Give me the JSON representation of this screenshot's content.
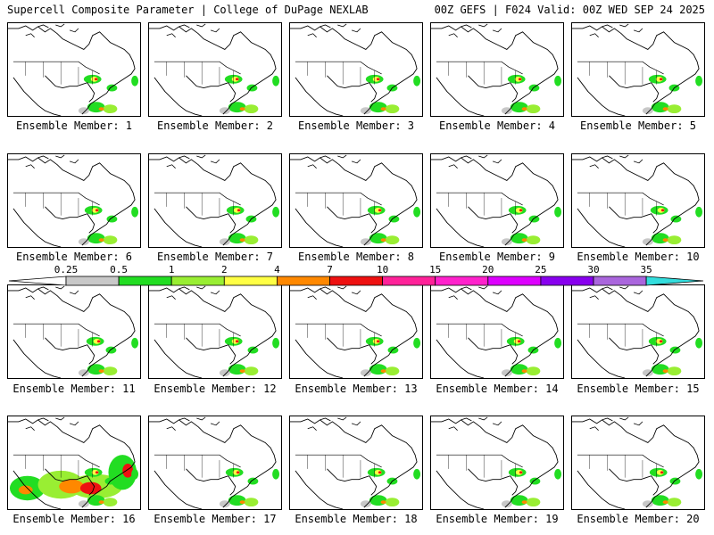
{
  "header": {
    "title_left": "Supercell Composite Parameter | College of DuPage NEXLAB",
    "title_right": "00Z GEFS | F024 Valid: 00Z WED SEP 24 2025"
  },
  "panels": [
    {
      "label": "Ensemble Member: 1",
      "intensity": 1
    },
    {
      "label": "Ensemble Member: 2",
      "intensity": 1
    },
    {
      "label": "Ensemble Member: 3",
      "intensity": 1
    },
    {
      "label": "Ensemble Member: 4",
      "intensity": 1
    },
    {
      "label": "Ensemble Member: 5",
      "intensity": 1
    },
    {
      "label": "Ensemble Member: 6",
      "intensity": 1
    },
    {
      "label": "Ensemble Member: 7",
      "intensity": 1
    },
    {
      "label": "Ensemble Member: 8",
      "intensity": 1
    },
    {
      "label": "Ensemble Member: 9",
      "intensity": 1
    },
    {
      "label": "Ensemble Member: 10",
      "intensity": 1
    },
    {
      "label": "Ensemble Member: 11",
      "intensity": 1
    },
    {
      "label": "Ensemble Member: 12",
      "intensity": 1
    },
    {
      "label": "Ensemble Member: 13",
      "intensity": 1
    },
    {
      "label": "Ensemble Member: 14",
      "intensity": 1
    },
    {
      "label": "Ensemble Member: 15",
      "intensity": 1
    },
    {
      "label": "Ensemble Member: 16",
      "intensity": 3
    },
    {
      "label": "Ensemble Member: 17",
      "intensity": 1
    },
    {
      "label": "Ensemble Member: 18",
      "intensity": 1
    },
    {
      "label": "Ensemble Member: 19",
      "intensity": 1
    },
    {
      "label": "Ensemble Member: 20",
      "intensity": 1
    }
  ],
  "colorbar": {
    "labels": [
      "0.25",
      "0.5",
      "1",
      "2",
      "4",
      "7",
      "10",
      "15",
      "20",
      "25",
      "30",
      "35"
    ],
    "colors": [
      "#ffffff",
      "#c8c8c8",
      "#22dd22",
      "#99ee33",
      "#ffff44",
      "#ff8800",
      "#ee1111",
      "#ff2299",
      "#ff22cc",
      "#dd00ff",
      "#8800ee",
      "#aa66dd",
      "#33dddd"
    ]
  }
}
